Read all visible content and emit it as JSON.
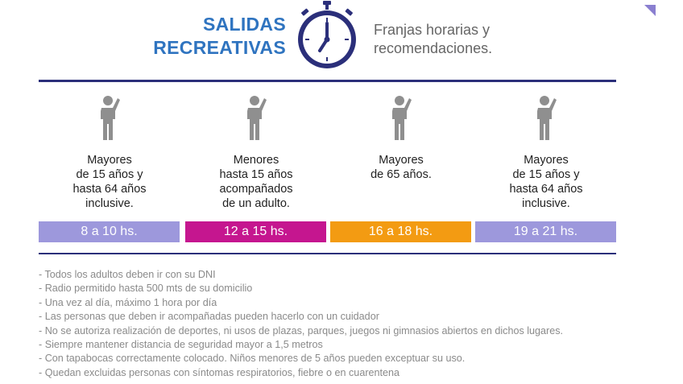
{
  "header": {
    "title_line1": "SALIDAS",
    "title_line2": "RECREATIVAS",
    "subtitle_line1": "Franjas horarias y",
    "subtitle_line2": "recomendaciones.",
    "icon": "clock-icon",
    "accent_color": "#2f74c0",
    "navy_color": "#2b2f7a"
  },
  "columns": [
    {
      "description": "Mayores\nde 15 años y\nhasta 64 años\ninclusive.",
      "time": "8 a 10 hs.",
      "color": "#9d98dc"
    },
    {
      "description": "Menores\nhasta 15 años\nacompañados\nde un adulto.",
      "time": "12 a 15 hs.",
      "color": "#c5168f"
    },
    {
      "description": "Mayores\nde 65 años.",
      "time": "16 a 18 hs.",
      "color": "#f39b12"
    },
    {
      "description": "Mayores\nde 15 años y\nhasta 64 años\ninclusive.",
      "time": "19 a 21 hs.",
      "color": "#9d98dc"
    }
  ],
  "notes": [
    "- Todos los adultos deben ir con su DNI",
    "- Radio permitido hasta 500 mts de su domicilio",
    "- Una vez al día, máximo 1 hora por día",
    "- Las personas que deben ir acompañadas pueden hacerlo con un cuidador",
    "- No se autoriza realización de deportes, ni usos de plazas, parques, juegos ni gimnasios abiertos en dichos lugares.",
    "- Siempre mantener distancia de seguridad mayor a 1,5 metros",
    "- Con tapabocas correctamente colocado. Niños menores de 5 años pueden exceptuar su uso.",
    "- Quedan excluidas personas con síntomas respiratorios, fiebre o en cuarentena"
  ]
}
